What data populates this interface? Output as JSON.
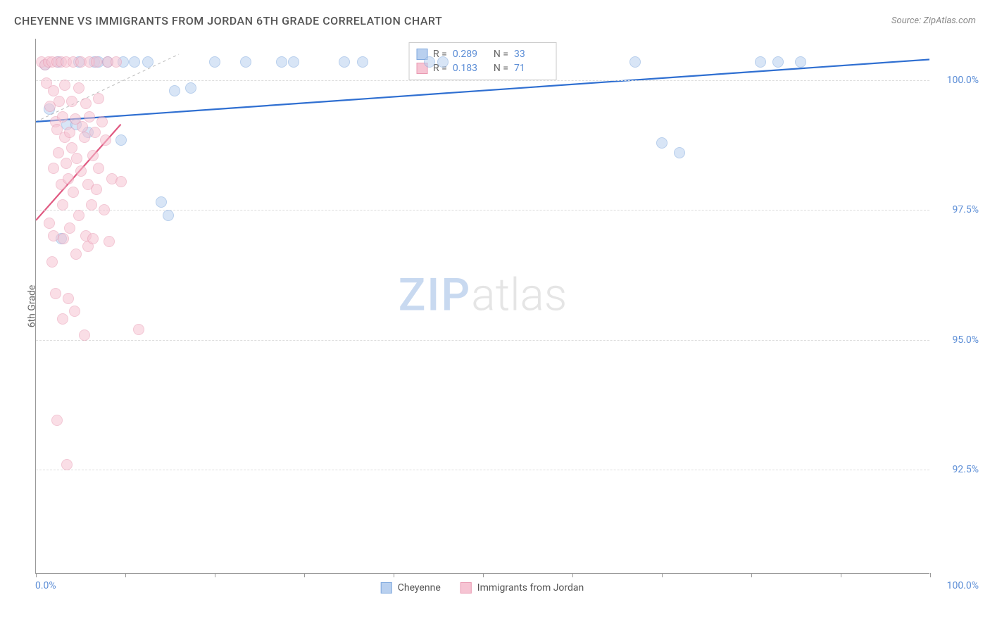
{
  "title": "CHEYENNE VS IMMIGRANTS FROM JORDAN 6TH GRADE CORRELATION CHART",
  "source": "Source: ZipAtlas.com",
  "watermark": {
    "zip": "ZIP",
    "atlas": "atlas",
    "zip_color": "#c8d9f0",
    "atlas_color": "#e5e5e5"
  },
  "chart": {
    "type": "scatter",
    "xlim": [
      0,
      100
    ],
    "ylim": [
      90.5,
      100.8
    ],
    "x_labels": {
      "min": "0.0%",
      "max": "100.0%"
    },
    "x_ticks": [
      0,
      10,
      20,
      30,
      40,
      50,
      60,
      70,
      80,
      90,
      100
    ],
    "y_ticks": [
      {
        "v": 100.0,
        "label": "100.0%"
      },
      {
        "v": 97.5,
        "label": "97.5%"
      },
      {
        "v": 95.0,
        "label": "95.0%"
      },
      {
        "v": 92.5,
        "label": "92.5%"
      }
    ],
    "y_axis_label": "6th Grade",
    "grid_color": "#dddddd",
    "axis_color": "#999999",
    "background_color": "#ffffff",
    "series": [
      {
        "name": "Cheyenne",
        "color": "#7fa8de",
        "fill": "#b9d0ef",
        "fill_opacity": 0.55,
        "stroke_opacity": 0.9,
        "marker_size": 16,
        "marker": "circle",
        "trend": {
          "x1": 0,
          "y1": 99.2,
          "x2": 100,
          "y2": 100.4,
          "color": "#2f6fd1",
          "width": 2.2
        },
        "guide": {
          "x1": 0,
          "y1": 99.2,
          "x2": 16,
          "y2": 100.5,
          "color": "#bbbbbb",
          "width": 1,
          "dash": "4,4"
        },
        "stats": {
          "R": "0.289",
          "N": "33"
        },
        "points": [
          [
            1.0,
            100.3
          ],
          [
            2.5,
            100.35
          ],
          [
            3.5,
            99.15
          ],
          [
            4.5,
            99.15
          ],
          [
            4.8,
            100.35
          ],
          [
            5.8,
            99.0
          ],
          [
            6.5,
            100.35
          ],
          [
            7.0,
            100.35
          ],
          [
            8.0,
            100.35
          ],
          [
            9.5,
            98.85
          ],
          [
            9.8,
            100.35
          ],
          [
            11.0,
            100.35
          ],
          [
            12.5,
            100.35
          ],
          [
            14.0,
            97.65
          ],
          [
            14.8,
            97.4
          ],
          [
            15.5,
            99.8
          ],
          [
            17.3,
            99.85
          ],
          [
            20.0,
            100.35
          ],
          [
            23.5,
            100.35
          ],
          [
            27.5,
            100.35
          ],
          [
            28.8,
            100.35
          ],
          [
            34.5,
            100.35
          ],
          [
            36.5,
            100.35
          ],
          [
            44.0,
            100.35
          ],
          [
            45.5,
            100.35
          ],
          [
            67.0,
            100.35
          ],
          [
            70.0,
            98.8
          ],
          [
            72.0,
            98.6
          ],
          [
            81.0,
            100.35
          ],
          [
            83.0,
            100.35
          ],
          [
            85.5,
            100.35
          ],
          [
            2.8,
            96.95
          ],
          [
            1.5,
            99.45
          ]
        ]
      },
      {
        "name": "Immigrants from Jordan",
        "color": "#e99ab2",
        "fill": "#f6c4d3",
        "fill_opacity": 0.55,
        "stroke_opacity": 0.9,
        "marker_size": 16,
        "marker": "circle",
        "trend": {
          "x1": 0,
          "y1": 97.3,
          "x2": 9.5,
          "y2": 99.15,
          "color": "#e05a82",
          "width": 2.2
        },
        "stats": {
          "R": "0.183",
          "N": "71"
        },
        "points": [
          [
            0.6,
            100.35
          ],
          [
            1.0,
            100.3
          ],
          [
            1.2,
            99.95
          ],
          [
            1.4,
            100.35
          ],
          [
            1.6,
            99.5
          ],
          [
            1.8,
            100.35
          ],
          [
            2.0,
            99.8
          ],
          [
            2.0,
            98.3
          ],
          [
            2.0,
            97.0
          ],
          [
            2.2,
            99.2
          ],
          [
            2.4,
            100.35
          ],
          [
            2.4,
            99.05
          ],
          [
            2.5,
            98.6
          ],
          [
            2.6,
            99.6
          ],
          [
            2.8,
            98.0
          ],
          [
            2.8,
            100.35
          ],
          [
            3.0,
            99.3
          ],
          [
            3.0,
            97.6
          ],
          [
            3.1,
            96.95
          ],
          [
            3.2,
            98.9
          ],
          [
            3.2,
            99.9
          ],
          [
            3.4,
            98.4
          ],
          [
            3.4,
            100.35
          ],
          [
            3.6,
            98.1
          ],
          [
            3.8,
            99.0
          ],
          [
            3.8,
            97.15
          ],
          [
            4.0,
            99.6
          ],
          [
            4.0,
            98.7
          ],
          [
            4.2,
            100.35
          ],
          [
            4.2,
            97.85
          ],
          [
            4.4,
            99.25
          ],
          [
            4.5,
            96.65
          ],
          [
            4.6,
            98.5
          ],
          [
            4.8,
            99.85
          ],
          [
            4.8,
            97.4
          ],
          [
            5.0,
            100.35
          ],
          [
            5.0,
            98.25
          ],
          [
            5.2,
            99.1
          ],
          [
            5.4,
            98.9
          ],
          [
            5.6,
            99.55
          ],
          [
            5.6,
            97.0
          ],
          [
            5.8,
            96.8
          ],
          [
            5.8,
            98.0
          ],
          [
            6.0,
            100.35
          ],
          [
            6.0,
            99.3
          ],
          [
            6.2,
            97.6
          ],
          [
            6.4,
            98.55
          ],
          [
            6.6,
            99.0
          ],
          [
            6.8,
            100.35
          ],
          [
            6.8,
            97.9
          ],
          [
            7.0,
            98.3
          ],
          [
            7.0,
            99.65
          ],
          [
            7.4,
            99.2
          ],
          [
            7.6,
            97.5
          ],
          [
            7.8,
            98.85
          ],
          [
            8.0,
            100.35
          ],
          [
            8.2,
            96.9
          ],
          [
            8.5,
            98.1
          ],
          [
            9.0,
            100.35
          ],
          [
            9.5,
            98.05
          ],
          [
            1.8,
            96.5
          ],
          [
            2.2,
            95.9
          ],
          [
            3.6,
            95.8
          ],
          [
            4.3,
            95.55
          ],
          [
            5.4,
            95.1
          ],
          [
            2.4,
            93.45
          ],
          [
            3.5,
            92.6
          ],
          [
            11.5,
            95.2
          ],
          [
            3.0,
            95.4
          ],
          [
            1.5,
            97.25
          ],
          [
            6.4,
            96.95
          ]
        ]
      }
    ],
    "legend": [
      {
        "label": "Cheyenne",
        "fill": "#b9d0ef",
        "stroke": "#7fa8de"
      },
      {
        "label": "Immigrants from Jordan",
        "fill": "#f6c4d3",
        "stroke": "#e99ab2"
      }
    ]
  },
  "stats_box": {
    "rows": [
      {
        "swatch_fill": "#b9d0ef",
        "swatch_stroke": "#7fa8de",
        "R_label": "R =",
        "R": "0.289",
        "N_label": "N =",
        "N": "33"
      },
      {
        "swatch_fill": "#f6c4d3",
        "swatch_stroke": "#e99ab2",
        "R_label": "R =",
        "R": "0.183",
        "N_label": "N =",
        "N": "71"
      }
    ]
  }
}
